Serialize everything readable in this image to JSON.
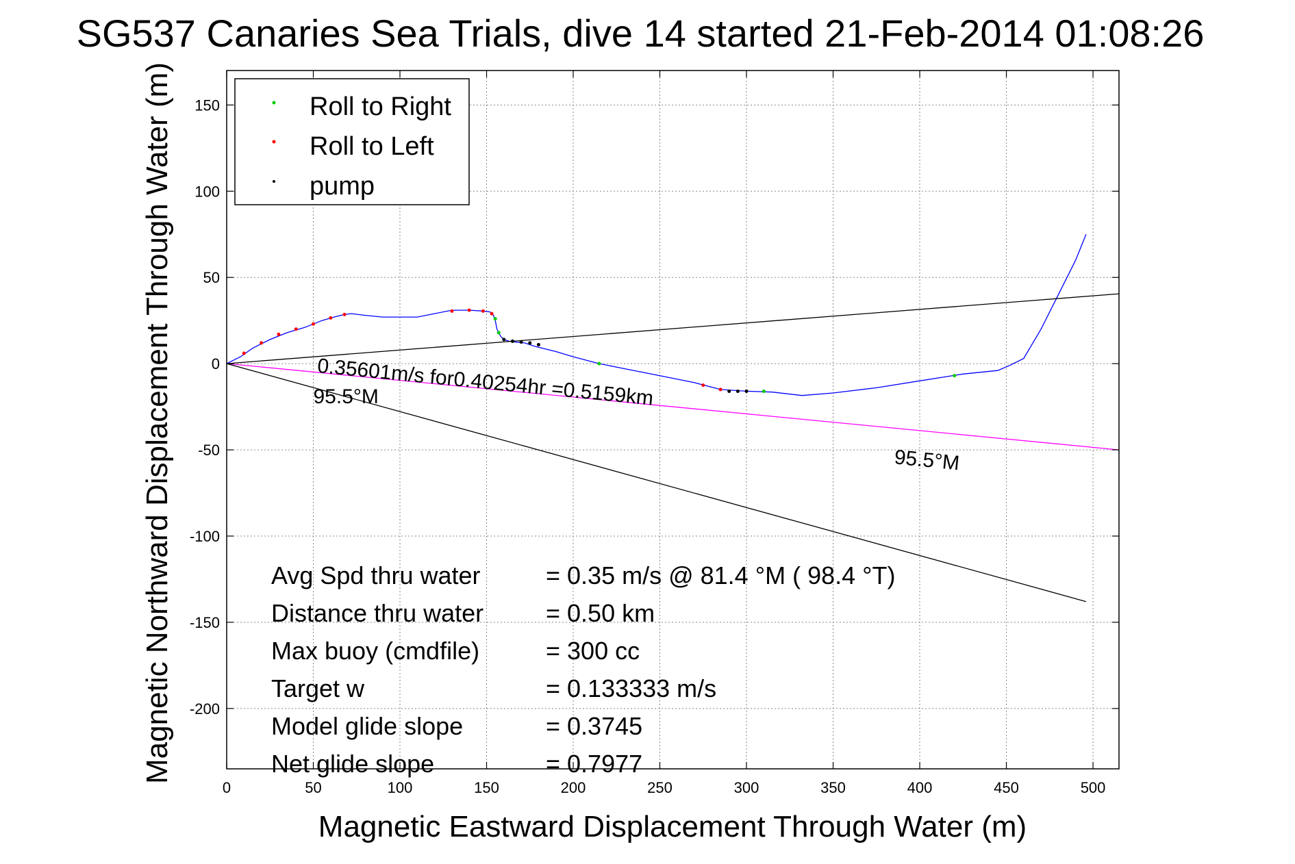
{
  "chart_data": {
    "type": "line",
    "title": "SG537 Canaries Sea Trials, dive 14 started 21-Feb-2014 01:08:26",
    "xlabel": "Magnetic Eastward Displacement Through Water (m)",
    "ylabel": "Magnetic Northward Displacement Through Water (m)",
    "xlim": [
      0,
      515
    ],
    "ylim": [
      -235,
      170
    ],
    "xticks": [
      0,
      50,
      100,
      150,
      200,
      250,
      300,
      350,
      400,
      450,
      500
    ],
    "yticks": [
      150,
      100,
      50,
      0,
      -50,
      -100,
      -150,
      -200
    ],
    "grid": true,
    "legend_position": "top-left",
    "legend": [
      {
        "label": "Roll to Right",
        "color": "#00cc00"
      },
      {
        "label": "Roll to Left",
        "color": "#ff0000"
      },
      {
        "label": "pump",
        "color": "#000000"
      }
    ],
    "series": [
      {
        "name": "",
        "color": "#0000ff",
        "x": [
          0,
          8,
          15,
          25,
          35,
          45,
          55,
          62,
          68,
          72,
          80,
          90,
          100,
          110,
          120,
          130,
          140,
          148,
          152,
          154,
          155,
          156,
          158,
          160,
          163,
          167,
          172,
          178,
          190,
          200,
          215,
          230,
          250,
          270,
          285,
          300,
          315,
          332,
          350,
          375,
          400,
          425,
          445,
          452,
          460,
          470,
          480,
          490,
          496
        ],
        "y": [
          0,
          4,
          9,
          14,
          18,
          21,
          25,
          27,
          28.5,
          29,
          28,
          27,
          27,
          27,
          29,
          31,
          31,
          30.5,
          30,
          28,
          25,
          20,
          16,
          14,
          13,
          12.5,
          12,
          10,
          7,
          4,
          0,
          -3,
          -7,
          -11,
          -15,
          -16,
          -16.5,
          -18.5,
          -17,
          -14,
          -10,
          -6,
          -4,
          -1,
          3,
          20,
          40,
          60,
          75
        ]
      },
      {
        "name": "",
        "color": "#ff00ff",
        "x": [
          0,
          515
        ],
        "y": [
          0,
          -50
        ]
      },
      {
        "name": "",
        "color": "#000000",
        "x": [
          0,
          515
        ],
        "y": [
          0,
          40.5
        ]
      },
      {
        "name": "",
        "color": "#000000",
        "x": [
          0,
          496
        ],
        "y": [
          0,
          -138
        ]
      }
    ],
    "markers": {
      "roll_left": {
        "color": "#ff0000",
        "x": [
          10,
          20,
          30,
          40,
          50,
          60,
          68,
          130,
          140,
          148,
          153,
          275,
          285
        ],
        "y": [
          6,
          12,
          17,
          20,
          23,
          26.5,
          28.5,
          30.5,
          31,
          30.5,
          29,
          -12.5,
          -15
        ]
      },
      "roll_right": {
        "color": "#00cc00",
        "x": [
          155,
          157,
          165,
          215,
          310,
          420
        ],
        "y": [
          26,
          18,
          13,
          0,
          -16,
          -7
        ]
      },
      "pump": {
        "color": "#000000",
        "x": [
          160,
          165,
          170,
          175,
          180,
          290,
          295,
          300
        ],
        "y": [
          14,
          13,
          12.5,
          12,
          11,
          -16,
          -16,
          -16
        ]
      }
    },
    "annotations": [
      {
        "text": "0.35601m/s for0.40254hr =0.5159km",
        "x": 52,
        "y": -5,
        "angle": 5.6
      },
      {
        "text": "95.5°M",
        "x": 50,
        "y": -23,
        "angle": 0
      },
      {
        "text": "95.5°M",
        "x": 385,
        "y": -58,
        "angle": 5.6
      }
    ]
  },
  "stats": [
    {
      "label": "Avg Spd thru water",
      "value": "=  0.35 m/s @  81.4 °M ( 98.4 °T)"
    },
    {
      "label": "Distance thru water",
      "value": "=  0.50 km"
    },
    {
      "label": "Max buoy (cmdfile)",
      "value": "= 300 cc"
    },
    {
      "label": "Target w",
      "value": "= 0.133333 m/s"
    },
    {
      "label": "Model glide slope",
      "value": "= 0.3745"
    },
    {
      "label": "Net glide slope",
      "value": "= 0.7977"
    }
  ]
}
